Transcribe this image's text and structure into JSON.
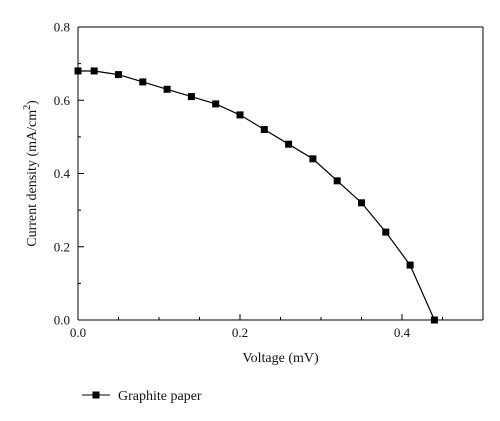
{
  "chart_data": {
    "type": "line",
    "xlabel": "Voltage (mV)",
    "ylabel_main": "Current density (mA/cm",
    "ylabel_sup": "2",
    "ylabel_close": ")",
    "xlim": [
      0.0,
      0.5
    ],
    "ylim": [
      0.0,
      0.8
    ],
    "x_ticks": [
      0.0,
      0.2,
      0.4
    ],
    "x_tick_labels": [
      "0.0",
      "0.2",
      "0.4"
    ],
    "y_ticks": [
      0.0,
      0.2,
      0.4,
      0.6,
      0.8
    ],
    "y_tick_labels": [
      "0.0",
      "0.2",
      "0.4",
      "0.6",
      "0.8"
    ],
    "grid": false,
    "legend_position": "bottom-left",
    "series": [
      {
        "name": "Graphite paper",
        "color": "#000000",
        "marker": "square",
        "x": [
          0.0,
          0.02,
          0.05,
          0.08,
          0.11,
          0.14,
          0.17,
          0.2,
          0.23,
          0.26,
          0.29,
          0.32,
          0.35,
          0.38,
          0.41,
          0.44
        ],
        "y": [
          0.68,
          0.68,
          0.67,
          0.65,
          0.63,
          0.61,
          0.59,
          0.56,
          0.52,
          0.48,
          0.44,
          0.38,
          0.32,
          0.24,
          0.15,
          0.0
        ]
      }
    ]
  }
}
